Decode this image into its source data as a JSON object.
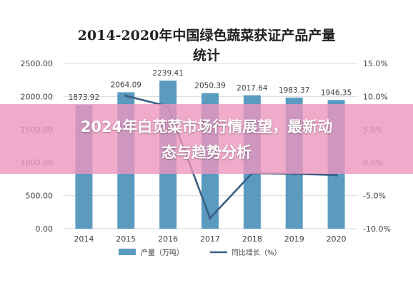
{
  "chart_data": {
    "type": "bar+line",
    "title": "2014-2020年中国绿色蔬菜获证产品产量统计",
    "categories": [
      "2014",
      "2015",
      "2016",
      "2017",
      "2018",
      "2019",
      "2020"
    ],
    "series": [
      {
        "name": "产量（万吨）",
        "type": "bar",
        "axis": "left",
        "values": [
          1873.92,
          2064.09,
          2239.41,
          2050.39,
          2017.64,
          1983.37,
          1946.35
        ],
        "data_labels": [
          "1873.92",
          "2064.09",
          "2239.41",
          "2050.39",
          "2017.64",
          "1983.37",
          "1946.35"
        ]
      },
      {
        "name": "同比增长（%）",
        "type": "line",
        "axis": "right",
        "values": [
          null,
          10.1,
          8.5,
          -8.4,
          -1.6,
          -1.7,
          -1.9
        ]
      }
    ],
    "y_left": {
      "range": [
        0,
        2500
      ],
      "ticks": [
        0,
        500,
        1000,
        1500,
        2000,
        2500
      ],
      "tick_labels": [
        "0.00",
        "500.00",
        "1000.00",
        "1500.00",
        "2000.00",
        "2500.00"
      ]
    },
    "y_right": {
      "range": [
        -10,
        15
      ],
      "ticks": [
        -10,
        -5,
        0,
        5,
        10,
        15
      ],
      "tick_labels": [
        "-10.0%",
        "-5.0%",
        "0.0%",
        "5.0%",
        "10.0%",
        "15.0%"
      ]
    },
    "grid": true,
    "legend_position": "bottom",
    "colors": {
      "bar": "#5b9bc0",
      "line": "#3a5f86",
      "grid": "#d9d9d9",
      "text": "#404040"
    }
  },
  "overlay": {
    "headline_line1": "2024年白苋菜市场行情展望，最新动",
    "headline_line2": "态与趋势分析"
  }
}
